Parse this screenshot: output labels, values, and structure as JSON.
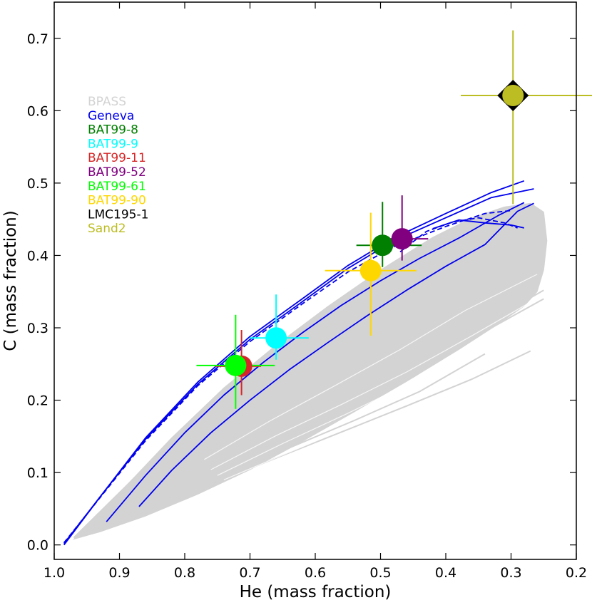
{
  "chart_data": {
    "type": "scatter",
    "title": "",
    "xlabel": "He (mass fraction)",
    "ylabel": "C (mass fraction)",
    "xlim": [
      1.0,
      0.2
    ],
    "ylim": [
      -0.02,
      0.75
    ],
    "x_inverted": true,
    "grid": false,
    "legend_position": "upper-left",
    "x_ticks": [
      1.0,
      0.9,
      0.8,
      0.7,
      0.6,
      0.5,
      0.4,
      0.3,
      0.2
    ],
    "x_tick_labels": [
      "1.0",
      "0.9",
      "0.8",
      "0.7",
      "0.6",
      "0.5",
      "0.4",
      "0.3",
      "0.2"
    ],
    "y_ticks": [
      0.0,
      0.1,
      0.2,
      0.3,
      0.4,
      0.5,
      0.6,
      0.7
    ],
    "y_tick_labels": [
      "0.0",
      "0.1",
      "0.2",
      "0.3",
      "0.4",
      "0.5",
      "0.6",
      "0.7"
    ],
    "legend": [
      {
        "label": "BPASS",
        "color": "#d3d3d3"
      },
      {
        "label": "Geneva",
        "color": "#0000ee"
      },
      {
        "label": "BAT99-8",
        "color": "#007f00"
      },
      {
        "label": "BAT99-9",
        "color": "#00ffff"
      },
      {
        "label": "BAT99-11",
        "color": "#d62728"
      },
      {
        "label": "BAT99-52",
        "color": "#800080"
      },
      {
        "label": "BAT99-61",
        "color": "#00ff00"
      },
      {
        "label": "BAT99-90",
        "color": "#ffd700"
      },
      {
        "label": "LMC195-1",
        "color": "#000000"
      },
      {
        "label": "Sand2",
        "color": "#bcbd22"
      }
    ],
    "series": [
      {
        "name": "BAT99-8",
        "color": "#007f00",
        "marker": "circle",
        "x": 0.497,
        "y": 0.414,
        "xerr": [
          0.04,
          0.06
        ],
        "yerr": [
          0.03,
          0.06
        ]
      },
      {
        "name": "BAT99-9",
        "color": "#00ffff",
        "marker": "circle",
        "x": 0.66,
        "y": 0.286,
        "xerr": [
          0.04,
          0.05
        ],
        "yerr": [
          0.03,
          0.06
        ]
      },
      {
        "name": "BAT99-11",
        "color": "#d62728",
        "marker": "circle",
        "x": 0.713,
        "y": 0.247,
        "xerr": [
          0.04,
          0.03
        ],
        "yerr": [
          0.04,
          0.05
        ]
      },
      {
        "name": "BAT99-52",
        "color": "#800080",
        "marker": "circle",
        "x": 0.467,
        "y": 0.423,
        "xerr": [
          0.04,
          0.04
        ],
        "yerr": [
          0.03,
          0.06
        ]
      },
      {
        "name": "BAT99-61",
        "color": "#00ff00",
        "marker": "circle",
        "x": 0.722,
        "y": 0.248,
        "xerr": [
          0.06,
          0.06
        ],
        "yerr": [
          0.06,
          0.07
        ]
      },
      {
        "name": "BAT99-90",
        "color": "#ffd700",
        "marker": "circle",
        "x": 0.515,
        "y": 0.379,
        "xerr": [
          0.07,
          0.07
        ],
        "yerr": [
          0.09,
          0.08
        ]
      },
      {
        "name": "LMC195-1",
        "color": "#000000",
        "marker": "diamond",
        "x": 0.297,
        "y": 0.621,
        "xerr": [
          0,
          0
        ],
        "yerr": [
          0,
          0
        ]
      },
      {
        "name": "Sand2",
        "color": "#bcbd22",
        "marker": "circle",
        "x": 0.297,
        "y": 0.621,
        "xerr": [
          0.08,
          0.14
        ],
        "yerr": [
          0.15,
          0.09
        ]
      }
    ],
    "geneva_tracks": [
      {
        "style": "solid",
        "x": [
          0.985,
          0.93,
          0.86,
          0.78,
          0.7,
          0.62,
          0.55,
          0.48,
          0.4,
          0.33,
          0.28
        ],
        "y": [
          0.0,
          0.066,
          0.148,
          0.225,
          0.288,
          0.34,
          0.386,
          0.424,
          0.458,
          0.487,
          0.503
        ]
      },
      {
        "style": "solid",
        "x": [
          0.985,
          0.93,
          0.86,
          0.78,
          0.7,
          0.62,
          0.55,
          0.48,
          0.4,
          0.33,
          0.265
        ],
        "y": [
          0.002,
          0.066,
          0.146,
          0.222,
          0.284,
          0.336,
          0.382,
          0.42,
          0.452,
          0.48,
          0.492
        ]
      },
      {
        "style": "dashed",
        "x": [
          0.985,
          0.93,
          0.86,
          0.78,
          0.7,
          0.62,
          0.55,
          0.48,
          0.4,
          0.34,
          0.3
        ],
        "y": [
          0.003,
          0.065,
          0.144,
          0.22,
          0.281,
          0.333,
          0.377,
          0.412,
          0.44,
          0.458,
          0.462
        ]
      },
      {
        "style": "solid",
        "x": [
          0.92,
          0.86,
          0.8,
          0.74,
          0.68,
          0.62,
          0.56,
          0.5,
          0.44,
          0.38,
          0.32,
          0.28
        ],
        "y": [
          0.032,
          0.096,
          0.155,
          0.207,
          0.252,
          0.293,
          0.331,
          0.365,
          0.396,
          0.424,
          0.455,
          0.473
        ]
      },
      {
        "style": "solid",
        "x": [
          0.87,
          0.82,
          0.76,
          0.7,
          0.64,
          0.58,
          0.52,
          0.46,
          0.4,
          0.34,
          0.29,
          0.265
        ],
        "y": [
          0.053,
          0.103,
          0.155,
          0.2,
          0.242,
          0.28,
          0.317,
          0.352,
          0.385,
          0.415,
          0.461,
          0.472
        ]
      },
      {
        "style": "dashed",
        "x": [
          0.47,
          0.43,
          0.39,
          0.35,
          0.31,
          0.29
        ],
        "y": [
          0.405,
          0.433,
          0.446,
          0.452,
          0.445,
          0.438
        ]
      },
      {
        "style": "solid",
        "x": [
          0.42,
          0.38,
          0.34,
          0.3,
          0.28
        ],
        "y": [
          0.437,
          0.449,
          0.445,
          0.442,
          0.438
        ]
      }
    ],
    "bpass_tracks": [
      {
        "x": [
          0.96,
          0.86,
          0.76,
          0.66,
          0.56,
          0.46,
          0.36,
          0.27
        ],
        "y": [
          0.012,
          0.048,
          0.084,
          0.12,
          0.156,
          0.192,
          0.229,
          0.268
        ]
      },
      {
        "x": [
          0.97,
          0.88,
          0.78,
          0.68,
          0.58,
          0.48,
          0.38,
          0.3
        ],
        "y": [
          0.01,
          0.09,
          0.16,
          0.222,
          0.28,
          0.338,
          0.396,
          0.445
        ]
      },
      {
        "x": [
          0.97,
          0.88,
          0.78,
          0.68,
          0.58,
          0.48,
          0.38,
          0.28
        ],
        "y": [
          0.01,
          0.075,
          0.14,
          0.198,
          0.255,
          0.31,
          0.365,
          0.418
        ]
      },
      {
        "x": [
          0.96,
          0.87,
          0.77,
          0.67,
          0.57,
          0.47,
          0.37,
          0.26
        ],
        "y": [
          0.012,
          0.068,
          0.124,
          0.177,
          0.226,
          0.276,
          0.33,
          0.38
        ]
      },
      {
        "x": [
          0.95,
          0.86,
          0.76,
          0.66,
          0.56,
          0.46,
          0.36,
          0.25
        ],
        "y": [
          0.015,
          0.062,
          0.11,
          0.157,
          0.2,
          0.245,
          0.295,
          0.352
        ]
      },
      {
        "x": [
          0.94,
          0.85,
          0.75,
          0.65,
          0.55,
          0.45,
          0.36,
          0.25
        ],
        "y": [
          0.018,
          0.06,
          0.102,
          0.146,
          0.188,
          0.232,
          0.285,
          0.34
        ]
      },
      {
        "x": [
          0.93,
          0.84,
          0.74,
          0.64,
          0.54,
          0.44,
          0.34
        ],
        "y": [
          0.022,
          0.058,
          0.096,
          0.134,
          0.172,
          0.212,
          0.264
        ]
      },
      {
        "x": [
          0.94,
          0.84,
          0.74,
          0.64,
          0.54,
          0.44
        ],
        "y": [
          0.02,
          0.08,
          0.138,
          0.19,
          0.24,
          0.292
        ]
      },
      {
        "x": [
          0.95,
          0.85,
          0.75,
          0.65,
          0.55
        ],
        "y": [
          0.018,
          0.082,
          0.148,
          0.205,
          0.254
        ]
      }
    ],
    "bpass_region": {
      "x": [
        0.97,
        0.9,
        0.82,
        0.74,
        0.66,
        0.58,
        0.5,
        0.42,
        0.36,
        0.31,
        0.27,
        0.25,
        0.245,
        0.25,
        0.26,
        0.28,
        0.32,
        0.38,
        0.46,
        0.54,
        0.62,
        0.7,
        0.78,
        0.86,
        0.93
      ],
      "y": [
        0.008,
        0.072,
        0.148,
        0.217,
        0.276,
        0.33,
        0.38,
        0.425,
        0.452,
        0.467,
        0.472,
        0.46,
        0.42,
        0.38,
        0.35,
        0.33,
        0.305,
        0.27,
        0.226,
        0.184,
        0.143,
        0.104,
        0.07,
        0.04,
        0.018
      ]
    }
  }
}
